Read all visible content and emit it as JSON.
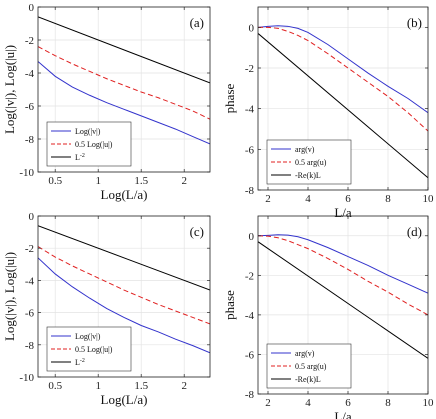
{
  "chart_data": [
    {
      "id": "a",
      "type": "line",
      "panel_label": "(a)",
      "xlabel": "Log(L/a)",
      "ylabel": "Log(|v|), Log(|u|)",
      "xlim": [
        0.3,
        2.3
      ],
      "ylim": [
        -10,
        0
      ],
      "xticks": [
        0.5,
        1,
        1.5,
        2
      ],
      "xtick_labels": [
        "0.5",
        "1",
        "1.5",
        "2"
      ],
      "yticks": [
        -10,
        -8,
        -6,
        -4,
        -2,
        0
      ],
      "ytick_labels": [
        "-10",
        "-8",
        "-6",
        "-4",
        "-2",
        "0"
      ],
      "grid": true,
      "legend_position": "bottom-left",
      "series": [
        {
          "name": "Log(|v|)",
          "color": "#3333cc",
          "dash": "solid",
          "x": [
            0.3,
            0.5,
            0.7,
            0.9,
            1.1,
            1.3,
            1.5,
            1.7,
            1.9,
            2.1,
            2.3
          ],
          "y": [
            -3.3,
            -4.2,
            -4.85,
            -5.35,
            -5.8,
            -6.2,
            -6.6,
            -7.0,
            -7.4,
            -7.85,
            -8.3
          ]
        },
        {
          "name": "0.5 Log(|u|)",
          "color": "#e02020",
          "dash": "dashed",
          "x": [
            0.3,
            0.5,
            0.7,
            0.9,
            1.1,
            1.3,
            1.5,
            1.7,
            1.9,
            2.1,
            2.3
          ],
          "y": [
            -2.4,
            -2.95,
            -3.45,
            -3.9,
            -4.35,
            -4.75,
            -5.15,
            -5.5,
            -5.9,
            -6.3,
            -6.8
          ]
        },
        {
          "name": "L^{-2}",
          "color": "#000000",
          "dash": "solid",
          "x": [
            0.3,
            2.3
          ],
          "y": [
            -0.6,
            -4.6
          ]
        }
      ]
    },
    {
      "id": "b",
      "type": "line",
      "panel_label": "(b)",
      "xlabel": "L/a",
      "ylabel": "phase",
      "xlim": [
        1.5,
        10
      ],
      "ylim": [
        -8,
        1
      ],
      "xticks": [
        2,
        4,
        6,
        8,
        10
      ],
      "xtick_labels": [
        "2",
        "4",
        "6",
        "8",
        "10"
      ],
      "yticks": [
        -8,
        -6,
        -4,
        -2,
        0
      ],
      "ytick_labels": [
        "-8",
        "-6",
        "-4",
        "-2",
        "0"
      ],
      "grid": true,
      "legend_position": "bottom-left",
      "series": [
        {
          "name": "arg(v)",
          "color": "#3333cc",
          "dash": "solid",
          "x": [
            1.5,
            2,
            2.5,
            3,
            3.5,
            4,
            5,
            6,
            7,
            8,
            9,
            10
          ],
          "y": [
            0,
            0.05,
            0.08,
            0.05,
            -0.05,
            -0.25,
            -0.85,
            -1.55,
            -2.25,
            -2.9,
            -3.5,
            -4.2
          ]
        },
        {
          "name": "0.5 arg(u)",
          "color": "#e02020",
          "dash": "dashed",
          "x": [
            1.5,
            2,
            2.5,
            3,
            3.5,
            4,
            5,
            6,
            7,
            8,
            9,
            10
          ],
          "y": [
            0,
            0,
            -0.05,
            -0.2,
            -0.4,
            -0.65,
            -1.3,
            -2.0,
            -2.7,
            -3.4,
            -4.2,
            -5.1
          ]
        },
        {
          "name": "-Re(k)L",
          "color": "#000000",
          "dash": "solid",
          "x": [
            1.5,
            10
          ],
          "y": [
            -0.3,
            -7.4
          ]
        }
      ]
    },
    {
      "id": "c",
      "type": "line",
      "panel_label": "(c)",
      "xlabel": "Log(L/a)",
      "ylabel": "Log(|v|), Log(|u|)",
      "xlim": [
        0.3,
        2.3
      ],
      "ylim": [
        -10,
        0
      ],
      "xticks": [
        0.5,
        1,
        1.5,
        2
      ],
      "xtick_labels": [
        "0.5",
        "1",
        "1.5",
        "2"
      ],
      "yticks": [
        -10,
        -8,
        -6,
        -4,
        -2,
        0
      ],
      "ytick_labels": [
        "-10",
        "-8",
        "-6",
        "-4",
        "-2",
        "0"
      ],
      "grid": true,
      "legend_position": "bottom-left",
      "series": [
        {
          "name": "Log(|v|)",
          "color": "#3333cc",
          "dash": "solid",
          "x": [
            0.3,
            0.5,
            0.7,
            0.9,
            1.1,
            1.3,
            1.5,
            1.7,
            1.9,
            2.1,
            2.3
          ],
          "y": [
            -2.6,
            -3.6,
            -4.4,
            -5.1,
            -5.75,
            -6.3,
            -6.8,
            -7.2,
            -7.65,
            -8.05,
            -8.5
          ]
        },
        {
          "name": "0.5 Log(|u|)",
          "color": "#e02020",
          "dash": "dashed",
          "x": [
            0.3,
            0.5,
            0.7,
            0.9,
            1.1,
            1.3,
            1.5,
            1.7,
            1.9,
            2.1,
            2.3
          ],
          "y": [
            -1.9,
            -2.55,
            -3.1,
            -3.6,
            -4.1,
            -4.6,
            -5.05,
            -5.5,
            -5.9,
            -6.3,
            -6.7
          ]
        },
        {
          "name": "L^{-2}",
          "color": "#000000",
          "dash": "solid",
          "x": [
            0.3,
            2.3
          ],
          "y": [
            -0.6,
            -4.6
          ]
        }
      ]
    },
    {
      "id": "d",
      "type": "line",
      "panel_label": "(d)",
      "xlabel": "L/a",
      "ylabel": "phase",
      "xlim": [
        1.5,
        10
      ],
      "ylim": [
        -8,
        1
      ],
      "xticks": [
        2,
        4,
        6,
        8,
        10
      ],
      "xtick_labels": [
        "2",
        "4",
        "6",
        "8",
        "10"
      ],
      "yticks": [
        -8,
        -6,
        -4,
        -2,
        0
      ],
      "ytick_labels": [
        "-8",
        "-6",
        "-4",
        "-2",
        "0"
      ],
      "grid": true,
      "legend_position": "bottom-left",
      "series": [
        {
          "name": "arg(v)",
          "color": "#3333cc",
          "dash": "solid",
          "x": [
            1.5,
            2,
            2.5,
            3,
            3.5,
            4,
            5,
            6,
            7,
            8,
            9,
            10
          ],
          "y": [
            0,
            0.02,
            0.05,
            0.03,
            -0.05,
            -0.2,
            -0.6,
            -1.05,
            -1.5,
            -2.0,
            -2.45,
            -2.9
          ]
        },
        {
          "name": "0.5 arg(u)",
          "color": "#e02020",
          "dash": "dashed",
          "x": [
            1.5,
            2,
            2.5,
            3,
            3.5,
            4,
            5,
            6,
            7,
            8,
            9,
            10
          ],
          "y": [
            0,
            -0.02,
            -0.1,
            -0.25,
            -0.45,
            -0.65,
            -1.15,
            -1.7,
            -2.3,
            -2.85,
            -3.45,
            -4.0
          ]
        },
        {
          "name": "-Re(k)L",
          "color": "#000000",
          "dash": "solid",
          "x": [
            1.5,
            10
          ],
          "y": [
            -0.3,
            -6.2
          ]
        }
      ]
    }
  ]
}
